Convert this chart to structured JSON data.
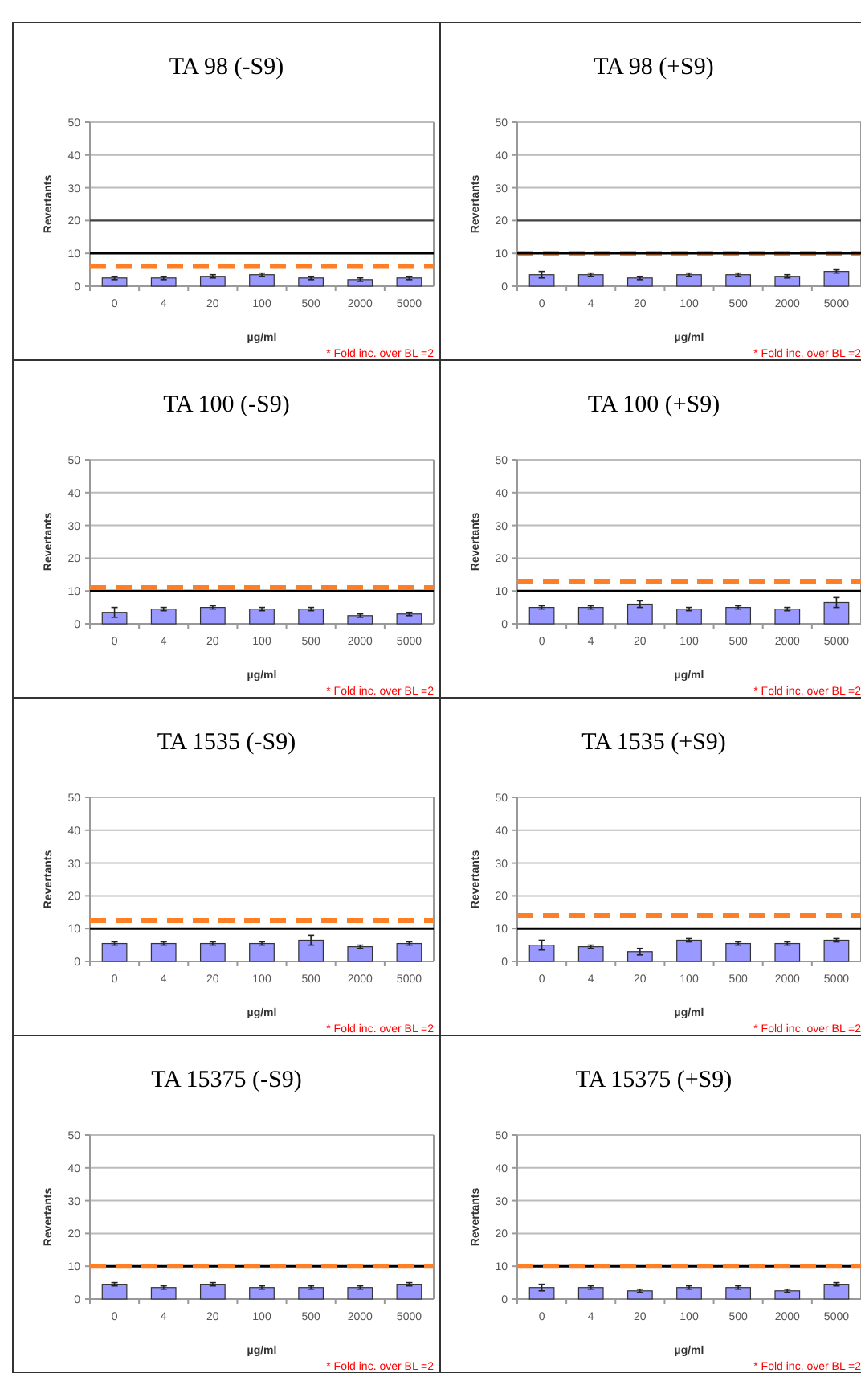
{
  "chart_data": [
    {
      "type": "bar",
      "title": "TA 98 (-S9)",
      "xlabel": "µg/ml",
      "ylabel": "Revertants",
      "categories": [
        "0",
        "4",
        "20",
        "100",
        "500",
        "2000",
        "5000"
      ],
      "values": [
        2.5,
        2.5,
        3,
        3.5,
        2.5,
        2,
        2.5
      ],
      "errors": [
        0.5,
        0.5,
        0.5,
        0.5,
        0.5,
        0.5,
        0.5
      ],
      "color": "#9999ff",
      "ylim": [
        0,
        50
      ],
      "yticks": [
        0,
        10,
        20,
        30,
        40,
        50
      ],
      "grid": "y",
      "ref_lines": [
        {
          "axis": "y",
          "value": 6,
          "color": "#ff7f27",
          "line_style": "dashed"
        },
        {
          "axis": "y",
          "value": 10,
          "color": "#000000",
          "line_style": "solid"
        },
        {
          "axis": "y",
          "value": 20,
          "color": "#404040",
          "line_style": "solid"
        }
      ],
      "annotations": [
        "* Fold inc. over BL =2"
      ]
    },
    {
      "type": "bar",
      "title": "TA 98 (+S9)",
      "xlabel": "µg/ml",
      "ylabel": "Revertants",
      "categories": [
        "0",
        "4",
        "20",
        "100",
        "500",
        "2000",
        "5000"
      ],
      "values": [
        3.5,
        3.5,
        2.5,
        3.5,
        3.5,
        3,
        4.5
      ],
      "errors": [
        1,
        0.5,
        0.5,
        0.5,
        0.5,
        0.5,
        0.5
      ],
      "color": "#9999ff",
      "ylim": [
        0,
        50
      ],
      "yticks": [
        0,
        10,
        20,
        30,
        40,
        50
      ],
      "grid": "y",
      "ref_lines": [
        {
          "axis": "y",
          "value": 10,
          "color": "#ff7f27",
          "line_style": "dashed"
        },
        {
          "axis": "y",
          "value": 10,
          "color": "#000000",
          "line_style": "solid"
        },
        {
          "axis": "y",
          "value": 20,
          "color": "#404040",
          "line_style": "solid"
        }
      ],
      "annotations": [
        "* Fold inc. over BL =2"
      ]
    },
    {
      "type": "bar",
      "title": "TA 100 (-S9)",
      "xlabel": "µg/ml",
      "ylabel": "Revertants",
      "categories": [
        "0",
        "4",
        "20",
        "100",
        "500",
        "2000",
        "5000"
      ],
      "values": [
        3.5,
        4.5,
        5,
        4.5,
        4.5,
        2.5,
        3
      ],
      "errors": [
        1.5,
        0.5,
        0.5,
        0.5,
        0.5,
        0.5,
        0.5
      ],
      "color": "#9999ff",
      "ylim": [
        0,
        50
      ],
      "yticks": [
        0,
        10,
        20,
        30,
        40,
        50
      ],
      "grid": "y",
      "ref_lines": [
        {
          "axis": "y",
          "value": 10,
          "color": "#000000",
          "line_style": "solid"
        },
        {
          "axis": "y",
          "value": 11,
          "color": "#ff7f27",
          "line_style": "dashed"
        }
      ],
      "annotations": [
        "* Fold inc. over BL =2"
      ]
    },
    {
      "type": "bar",
      "title": "TA 100 (+S9)",
      "xlabel": "µg/ml",
      "ylabel": "Revertants",
      "categories": [
        "0",
        "4",
        "20",
        "100",
        "500",
        "2000",
        "5000"
      ],
      "values": [
        5,
        5,
        6,
        4.5,
        5,
        4.5,
        6.5
      ],
      "errors": [
        0.5,
        0.5,
        1,
        0.5,
        0.5,
        0.5,
        1.5
      ],
      "color": "#9999ff",
      "ylim": [
        0,
        50
      ],
      "yticks": [
        0,
        10,
        20,
        30,
        40,
        50
      ],
      "grid": "y",
      "ref_lines": [
        {
          "axis": "y",
          "value": 10,
          "color": "#000000",
          "line_style": "solid"
        },
        {
          "axis": "y",
          "value": 13,
          "color": "#ff7f27",
          "line_style": "dashed"
        }
      ],
      "annotations": [
        "* Fold inc. over BL =2"
      ]
    },
    {
      "type": "bar",
      "title": "TA 1535 (-S9)",
      "xlabel": "µg/ml",
      "ylabel": "Revertants",
      "categories": [
        "0",
        "4",
        "20",
        "100",
        "500",
        "2000",
        "5000"
      ],
      "values": [
        5.5,
        5.5,
        5.5,
        5.5,
        6.5,
        4.5,
        5.5
      ],
      "errors": [
        0.5,
        0.5,
        0.5,
        0.5,
        1.5,
        0.5,
        0.5
      ],
      "color": "#9999ff",
      "ylim": [
        0,
        50
      ],
      "yticks": [
        0,
        10,
        20,
        30,
        40,
        50
      ],
      "grid": "y",
      "ref_lines": [
        {
          "axis": "y",
          "value": 10,
          "color": "#000000",
          "line_style": "solid"
        },
        {
          "axis": "y",
          "value": 12.5,
          "color": "#ff7f27",
          "line_style": "dashed"
        }
      ],
      "annotations": [
        "* Fold inc. over BL =2"
      ]
    },
    {
      "type": "bar",
      "title": "TA 1535 (+S9)",
      "xlabel": "µg/ml",
      "ylabel": "Revertants",
      "categories": [
        "0",
        "4",
        "20",
        "100",
        "500",
        "2000",
        "5000"
      ],
      "values": [
        5,
        4.5,
        3,
        6.5,
        5.5,
        5.5,
        6.5
      ],
      "errors": [
        1.5,
        0.5,
        1,
        0.5,
        0.5,
        0.5,
        0.5
      ],
      "color": "#9999ff",
      "ylim": [
        0,
        50
      ],
      "yticks": [
        0,
        10,
        20,
        30,
        40,
        50
      ],
      "grid": "y",
      "ref_lines": [
        {
          "axis": "y",
          "value": 10,
          "color": "#000000",
          "line_style": "solid"
        },
        {
          "axis": "y",
          "value": 14,
          "color": "#ff7f27",
          "line_style": "dashed"
        }
      ],
      "annotations": [
        "* Fold inc. over BL =2"
      ]
    },
    {
      "type": "bar",
      "title": "TA 15375 (-S9)",
      "xlabel": "µg/ml",
      "ylabel": "Revertants",
      "categories": [
        "0",
        "4",
        "20",
        "100",
        "500",
        "2000",
        "5000"
      ],
      "values": [
        4.5,
        3.5,
        4.5,
        3.5,
        3.5,
        3.5,
        4.5
      ],
      "errors": [
        0.5,
        0.5,
        0.5,
        0.5,
        0.5,
        0.5,
        0.5
      ],
      "color": "#9999ff",
      "ylim": [
        0,
        50
      ],
      "yticks": [
        0,
        10,
        20,
        30,
        40,
        50
      ],
      "grid": "y",
      "ref_lines": [
        {
          "axis": "y",
          "value": 10,
          "color": "#000000",
          "line_style": "solid"
        },
        {
          "axis": "y",
          "value": 10,
          "color": "#ff7f27",
          "line_style": "dashed"
        }
      ],
      "annotations": [
        "* Fold inc. over BL =2"
      ]
    },
    {
      "type": "bar",
      "title": "TA 15375 (+S9)",
      "xlabel": "µg/ml",
      "ylabel": "Revertants",
      "categories": [
        "0",
        "4",
        "20",
        "100",
        "500",
        "2000",
        "5000"
      ],
      "values": [
        3.5,
        3.5,
        2.5,
        3.5,
        3.5,
        2.5,
        4.5
      ],
      "errors": [
        1,
        0.5,
        0.5,
        0.5,
        0.5,
        0.5,
        0.5
      ],
      "color": "#9999ff",
      "ylim": [
        0,
        50
      ],
      "yticks": [
        0,
        10,
        20,
        30,
        40,
        50
      ],
      "grid": "y",
      "ref_lines": [
        {
          "axis": "y",
          "value": 10,
          "color": "#000000",
          "line_style": "solid"
        },
        {
          "axis": "y",
          "value": 10,
          "color": "#ff7f27",
          "line_style": "dashed"
        }
      ],
      "annotations": [
        "* Fold inc. over BL =2"
      ]
    }
  ]
}
